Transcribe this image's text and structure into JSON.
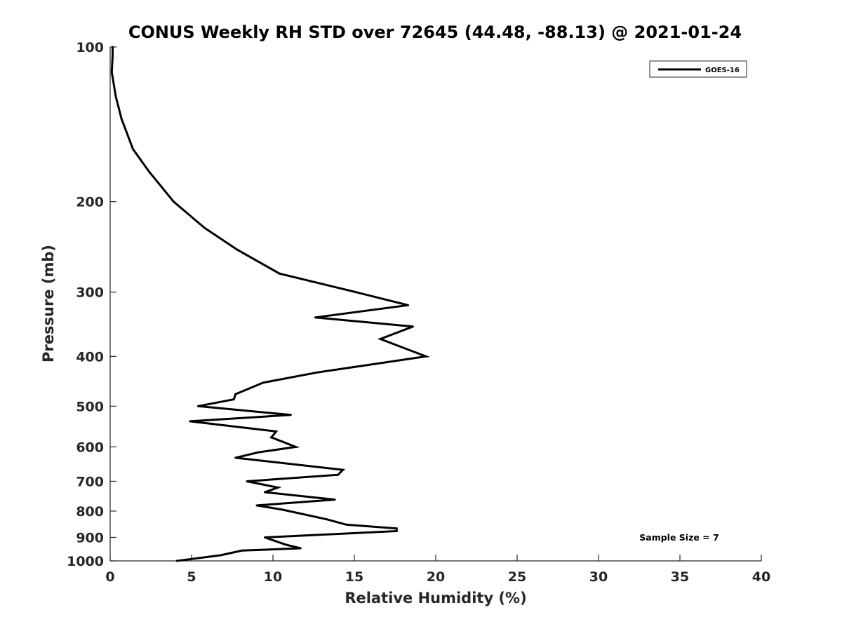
{
  "chart_data": {
    "type": "line",
    "title": "CONUS Weekly RH STD over 72645 (44.48, -88.13) @ 2021-01-24",
    "xlabel": "Relative Humidity (%)",
    "ylabel": "Pressure (mb)",
    "xlim": [
      0,
      40
    ],
    "ylim": [
      1000,
      100
    ],
    "y_scale": "log",
    "y_reversed": true,
    "grid": false,
    "x_ticks": [
      "0",
      "5",
      "10",
      "15",
      "20",
      "25",
      "30",
      "35",
      "40"
    ],
    "y_ticks": [
      "100",
      "200",
      "300",
      "400",
      "500",
      "600",
      "700",
      "800",
      "900",
      "1000"
    ],
    "legend": {
      "position": "top-right",
      "entries": [
        "GOES-16"
      ]
    },
    "annotation": "Sample Size = 7",
    "series": [
      {
        "name": "GOES-16",
        "color": "#000000",
        "x": [
          0.15,
          0.15,
          0.1,
          0.35,
          0.7,
          1.4,
          2.4,
          3.9,
          5.8,
          7.8,
          10.4,
          15.1,
          18.3,
          12.6,
          18.6,
          16.6,
          19.4,
          12.7,
          9.4,
          7.7,
          7.6,
          5.4,
          11.1,
          4.9,
          10.2,
          9.9,
          11.4,
          9.1,
          7.7,
          14.3,
          14.0,
          8.4,
          10.3,
          9.5,
          13.8,
          9.0,
          10.6,
          13.3,
          14.5,
          17.6,
          17.6,
          9.5,
          10.8,
          11.7,
          8.1,
          6.8,
          4.1
        ],
        "y": [
          100,
          104,
          112,
          125,
          138,
          158,
          175,
          200,
          225,
          248,
          276,
          300,
          318,
          336,
          350,
          370,
          400,
          430,
          450,
          474,
          485,
          500,
          520,
          535,
          560,
          575,
          600,
          615,
          630,
          665,
          680,
          700,
          720,
          735,
          760,
          780,
          795,
          830,
          850,
          865,
          875,
          900,
          930,
          945,
          955,
          975,
          1000
        ]
      }
    ]
  }
}
